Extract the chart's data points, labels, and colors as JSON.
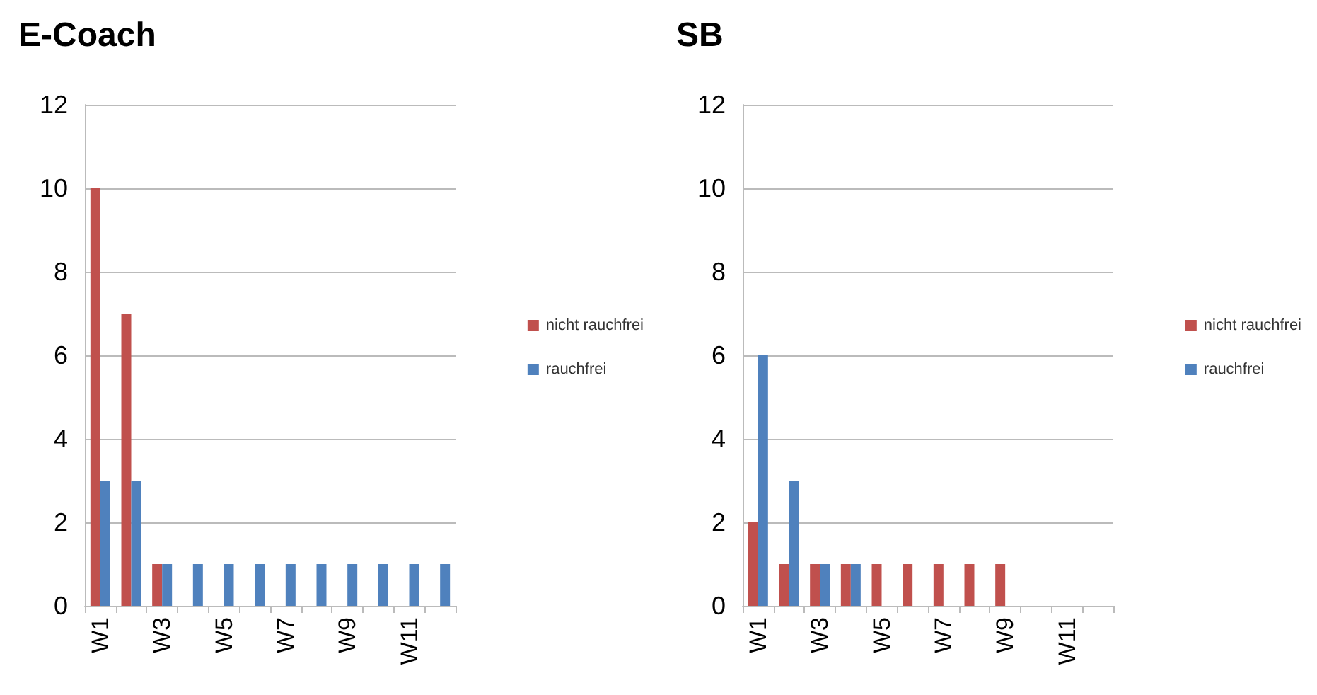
{
  "chart_data": [
    {
      "type": "bar",
      "title": "E-Coach",
      "categories": [
        "W1",
        null,
        "W3",
        null,
        "W5",
        null,
        "W7",
        null,
        "W9",
        null,
        "W11",
        null
      ],
      "series": [
        {
          "name": "nicht rauchfrei",
          "color": "#c0504d",
          "values": [
            10,
            7,
            1,
            null,
            null,
            null,
            null,
            null,
            null,
            null,
            null,
            null
          ]
        },
        {
          "name": "rauchfrei",
          "color": "#4f81bd",
          "values": [
            3,
            3,
            1,
            1,
            1,
            1,
            1,
            1,
            1,
            1,
            1,
            1
          ]
        }
      ],
      "ylim": [
        0,
        12
      ],
      "yticks": [
        0,
        2,
        4,
        6,
        8,
        10,
        12
      ],
      "grid": "y",
      "legend": "right"
    },
    {
      "type": "bar",
      "title": "SB",
      "categories": [
        "W1",
        null,
        "W3",
        null,
        "W5",
        null,
        "W7",
        null,
        "W9",
        null,
        "W11",
        null
      ],
      "series": [
        {
          "name": "nicht rauchfrei",
          "color": "#c0504d",
          "values": [
            2,
            1,
            1,
            1,
            1,
            1,
            1,
            1,
            1,
            null,
            null,
            null
          ]
        },
        {
          "name": "rauchfrei",
          "color": "#4f81bd",
          "values": [
            6,
            3,
            1,
            1,
            null,
            null,
            null,
            null,
            null,
            null,
            null,
            null
          ]
        }
      ],
      "ylim": [
        0,
        12
      ],
      "yticks": [
        0,
        2,
        4,
        6,
        8,
        10,
        12
      ],
      "grid": "y",
      "legend": "right"
    }
  ]
}
